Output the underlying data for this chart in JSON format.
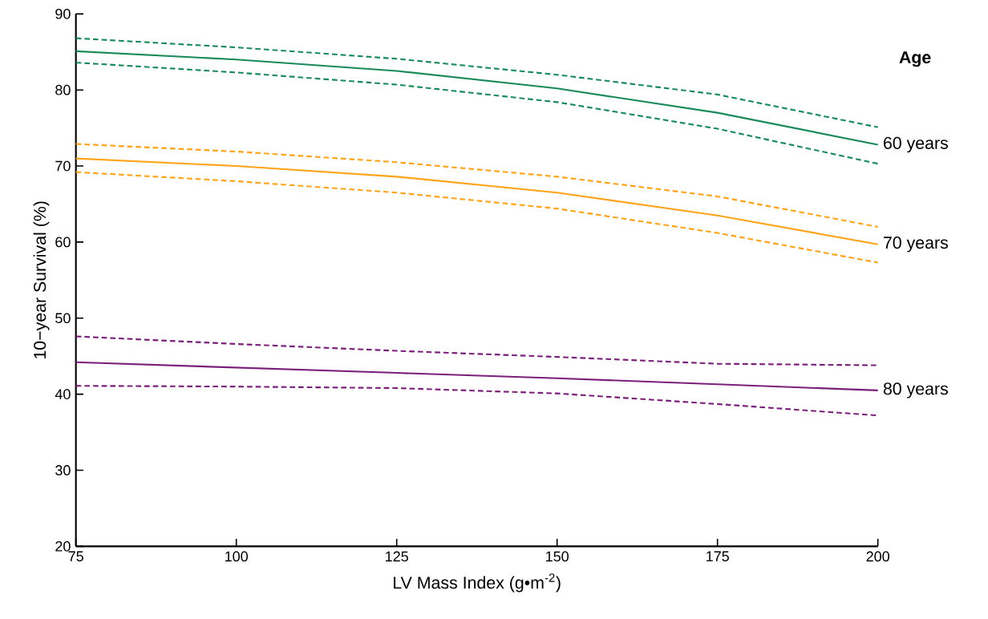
{
  "chart_data": {
    "type": "line",
    "xlabel": "LV Mass Index (g•m$^{-2}$)",
    "ylabel": "10−year Survival (%)",
    "legend_title": "Age",
    "x": [
      75,
      100,
      125,
      150,
      175,
      200
    ],
    "xlim": [
      75,
      200
    ],
    "ylim": [
      20,
      90
    ],
    "xticks": [
      75,
      100,
      125,
      150,
      175,
      200
    ],
    "yticks": [
      20,
      30,
      40,
      50,
      60,
      70,
      80,
      90
    ],
    "series": [
      {
        "name": "60 years",
        "color": "#1a8a5a",
        "line_style": "solid",
        "values": [
          85.1,
          84.0,
          82.5,
          80.2,
          77.0,
          72.8
        ]
      },
      {
        "color": "#1a8a5a",
        "line_style": "dashed",
        "values": [
          86.8,
          85.6,
          84.1,
          82.0,
          79.4,
          75.1
        ]
      },
      {
        "color": "#1a8a5a",
        "line_style": "dashed",
        "values": [
          83.6,
          82.3,
          80.7,
          78.4,
          74.9,
          70.3
        ]
      },
      {
        "name": "70 years",
        "color": "#ffa31a",
        "line_style": "solid",
        "values": [
          71.0,
          70.0,
          68.6,
          66.5,
          63.5,
          59.7
        ]
      },
      {
        "color": "#ffa31a",
        "line_style": "dashed",
        "values": [
          72.9,
          71.9,
          70.5,
          68.6,
          66.0,
          62.0
        ]
      },
      {
        "color": "#ffa31a",
        "line_style": "dashed",
        "values": [
          69.2,
          68.0,
          66.5,
          64.4,
          61.2,
          57.3
        ]
      },
      {
        "name": "80 years",
        "color": "#7a1f7a",
        "line_style": "solid",
        "values": [
          44.2,
          43.5,
          42.8,
          42.1,
          41.3,
          40.5
        ]
      },
      {
        "color": "#7a1f7a",
        "line_style": "dashed",
        "values": [
          47.6,
          46.6,
          45.7,
          44.9,
          44.0,
          43.8
        ]
      },
      {
        "color": "#7a1f7a",
        "line_style": "dashed",
        "values": [
          41.1,
          41.0,
          40.8,
          40.1,
          38.7,
          37.2
        ]
      }
    ]
  }
}
